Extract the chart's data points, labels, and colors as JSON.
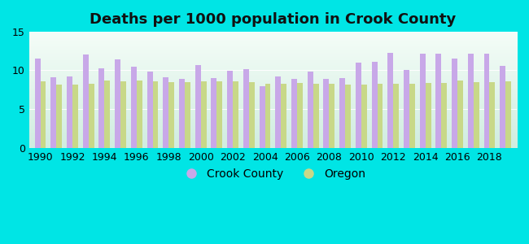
{
  "title": "Deaths per 1000 population in Crook County",
  "years": [
    1990,
    1991,
    1992,
    1993,
    1994,
    1995,
    1996,
    1997,
    1998,
    1999,
    2000,
    2001,
    2002,
    2003,
    2004,
    2005,
    2006,
    2007,
    2008,
    2009,
    2010,
    2011,
    2012,
    2013,
    2014,
    2015,
    2016,
    2017,
    2018,
    2019
  ],
  "crook_county": [
    11.5,
    9.1,
    9.2,
    12.0,
    10.3,
    11.4,
    10.5,
    9.8,
    9.1,
    8.9,
    10.7,
    9.0,
    9.9,
    10.2,
    7.9,
    9.2,
    8.9,
    9.8,
    8.9,
    9.0,
    11.0,
    11.1,
    12.2,
    10.0,
    12.1,
    12.1,
    11.5,
    12.1,
    12.1,
    10.6
  ],
  "oregon": [
    8.6,
    8.2,
    8.2,
    8.3,
    8.7,
    8.6,
    8.7,
    8.6,
    8.5,
    8.5,
    8.6,
    8.6,
    8.6,
    8.5,
    8.3,
    8.3,
    8.4,
    8.3,
    8.3,
    8.2,
    8.2,
    8.3,
    8.3,
    8.3,
    8.4,
    8.4,
    8.7,
    8.5,
    8.5,
    8.6
  ],
  "crook_color": "#c8a8e8",
  "oregon_color": "#c8d888",
  "background_outer": "#00e5e5",
  "bg_top": "#f5fdf8",
  "bg_bottom": "#d0ede0",
  "ylim": [
    0,
    15
  ],
  "yticks": [
    0,
    5,
    10,
    15
  ],
  "title_fontsize": 13,
  "tick_fontsize": 9,
  "legend_fontsize": 10,
  "bar_width": 0.35
}
